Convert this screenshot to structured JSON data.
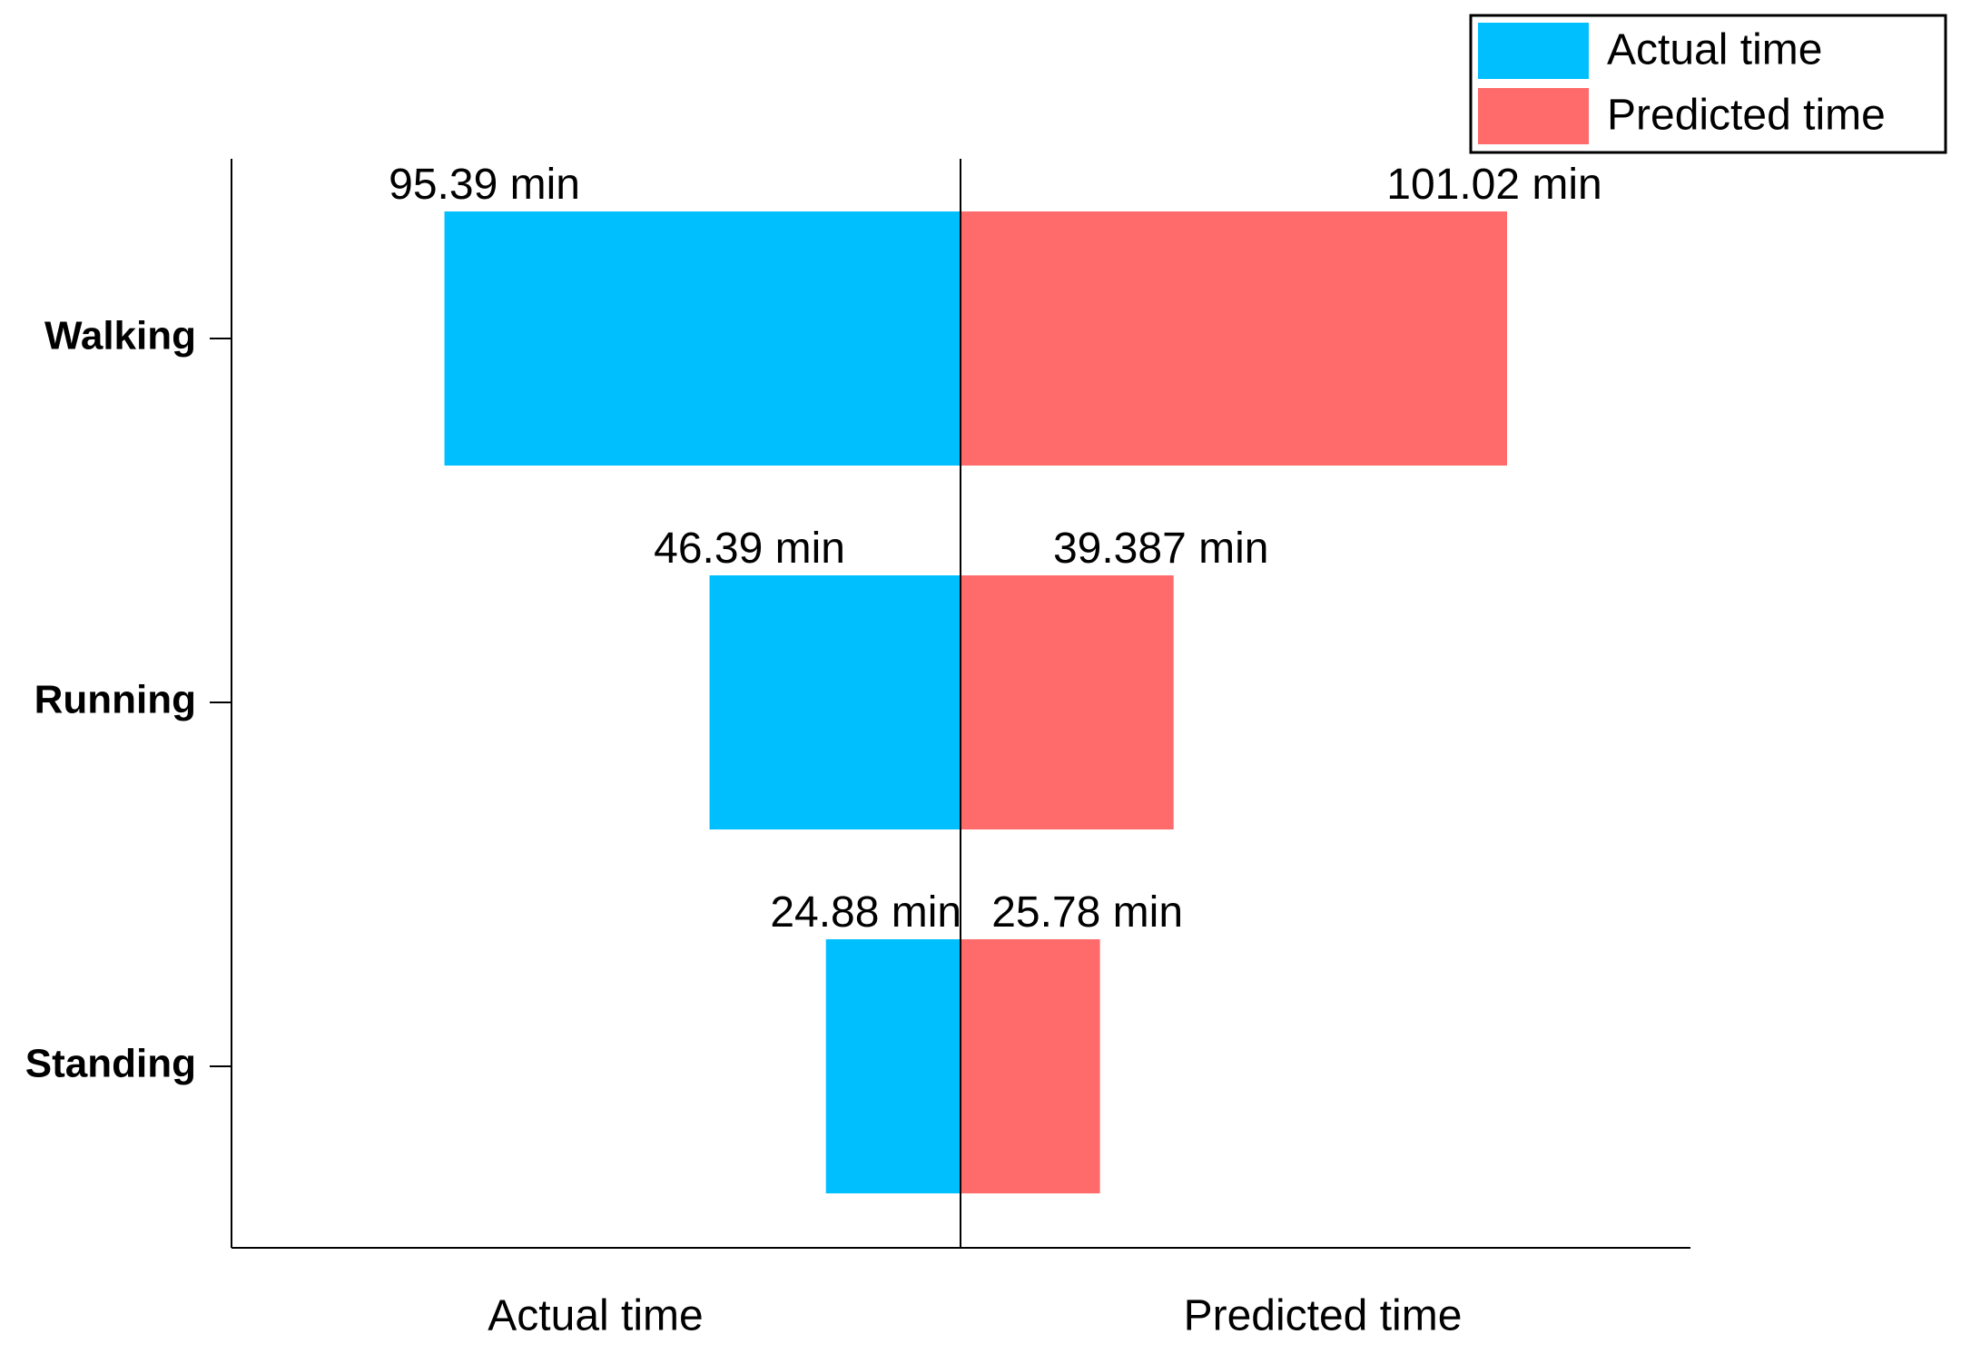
{
  "chart_data": {
    "type": "butterfly",
    "categories": [
      "Walking",
      "Running",
      "Standing"
    ],
    "series": [
      {
        "name": "Actual time",
        "color": "#00bfff",
        "values": [
          95.39,
          46.39,
          24.88
        ],
        "value_labels": [
          "95.39 min",
          "46.39 min",
          "24.88 min"
        ]
      },
      {
        "name": "Predicted time",
        "color": "#ff6b6b",
        "values": [
          101.02,
          39.387,
          25.78
        ],
        "value_labels": [
          "101.02 min",
          "39.387 min",
          "25.78 min"
        ]
      }
    ],
    "legend": "upper right"
  }
}
